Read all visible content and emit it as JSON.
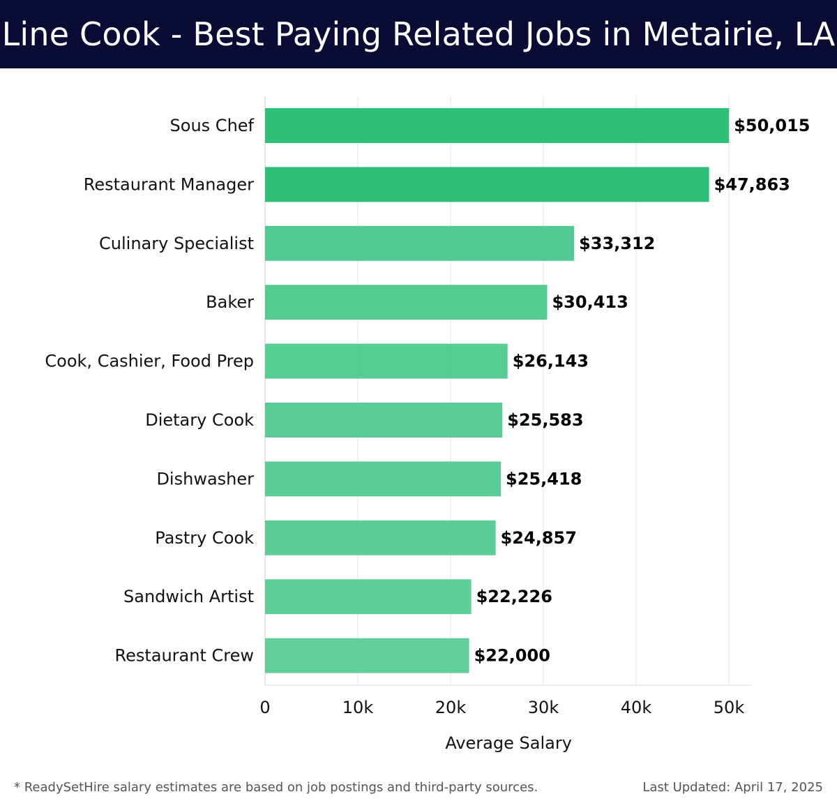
{
  "header": {
    "title": "Line Cook - Best Paying Related Jobs in Metairie, LA"
  },
  "chart_data": {
    "type": "bar",
    "orientation": "horizontal",
    "title": "Line Cook - Best Paying Related Jobs in Metairie, LA",
    "xlabel": "Average Salary",
    "ylabel": "",
    "xlim": [
      0,
      52500
    ],
    "xticks": [
      0,
      10000,
      20000,
      30000,
      40000,
      50000
    ],
    "xtick_labels": [
      "0",
      "10k",
      "20k",
      "30k",
      "40k",
      "50k"
    ],
    "grid": "vertical",
    "categories": [
      "Sous Chef",
      "Restaurant Manager",
      "Culinary Specialist",
      "Baker",
      "Cook, Cashier, Food Prep",
      "Dietary Cook",
      "Dishwasher",
      "Pastry Cook",
      "Sandwich Artist",
      "Restaurant Crew"
    ],
    "values": [
      50015,
      47863,
      33312,
      30413,
      26143,
      25583,
      25418,
      24857,
      22226,
      22000
    ],
    "value_labels": [
      "$50,015",
      "$47,863",
      "$33,312",
      "$30,413",
      "$26,143",
      "$25,583",
      "$25,418",
      "$24,857",
      "$22,226",
      "$22,000"
    ],
    "colors": {
      "top": "#2ebf78",
      "rest": "#4fc98e"
    }
  },
  "footer": {
    "note": "* ReadySetHire salary estimates are based on job postings and third-party sources.",
    "updated": "Last Updated: April 17, 2025"
  }
}
